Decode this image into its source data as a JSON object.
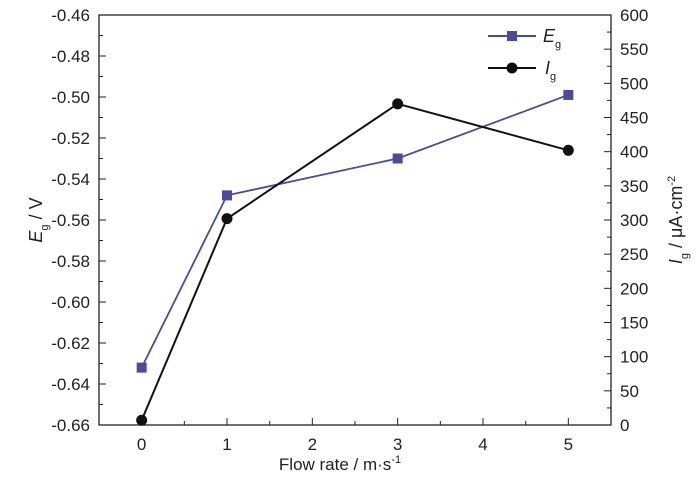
{
  "chart_data": {
    "type": "line",
    "title": "",
    "xlabel": "Flow rate / m·s",
    "xlabel_sup": "-1",
    "ylabel_left": {
      "symbol": "E",
      "sub": "g",
      "unit": " / V"
    },
    "ylabel_right": {
      "symbol": "I",
      "sub": "g",
      "unit": " / μA·cm",
      "sup": "-2"
    },
    "xlim": [
      -0.5,
      5.5
    ],
    "ylim_left": [
      -0.66,
      -0.46
    ],
    "ylim_right": [
      0,
      600
    ],
    "x_ticks": [
      "0",
      "1",
      "2",
      "3",
      "4",
      "5"
    ],
    "y_left_ticks": [
      "-0.46",
      "-0.48",
      "-0.50",
      "-0.52",
      "-0.54",
      "-0.56",
      "-0.58",
      "-0.60",
      "-0.62",
      "-0.64",
      "-0.66"
    ],
    "y_right_ticks": [
      "600",
      "550",
      "500",
      "450",
      "400",
      "350",
      "300",
      "250",
      "200",
      "150",
      "100",
      "50",
      "0"
    ],
    "grid": false,
    "legend_position": "top-right",
    "series": [
      {
        "name": "E",
        "sub": "g",
        "axis": "left",
        "marker": "square",
        "color": "#4b4b9b",
        "x": [
          0,
          1,
          3,
          5
        ],
        "values": [
          -0.632,
          -0.548,
          -0.53,
          -0.499
        ]
      },
      {
        "name": "I",
        "sub": "g",
        "axis": "right",
        "marker": "circle",
        "color": "#111111",
        "x": [
          0,
          1,
          3,
          5
        ],
        "values": [
          7,
          302,
          470,
          402
        ]
      }
    ]
  }
}
